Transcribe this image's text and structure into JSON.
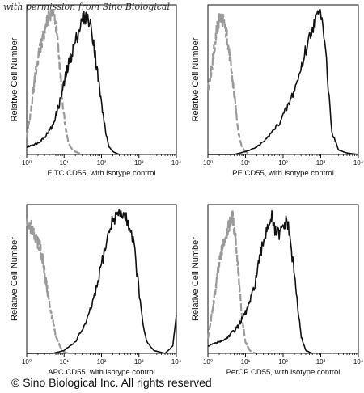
{
  "watermark": "with permission from Sino Biological",
  "copyright": "© Sino Biological Inc. All rights reserved",
  "chart_data": [
    {
      "type": "line",
      "xlabel": "FITC CD55, with isotype control",
      "ylabel": "Relative Cell Number",
      "xscale": "log",
      "xlim": [
        1,
        10000
      ],
      "ylim": [
        0,
        100
      ],
      "x_ticks": [
        "10⁰",
        "10¹",
        "10²",
        "10³",
        "10⁴"
      ],
      "series": [
        {
          "style": "dashed-gray",
          "color": "#9a9a9a",
          "x": [
            1,
            1.3,
            1.7,
            2.2,
            2.8,
            3.5,
            4.2,
            5,
            5.8,
            6.7,
            7.8,
            9,
            11,
            13,
            16,
            20,
            30
          ],
          "y": [
            12,
            30,
            55,
            72,
            82,
            92,
            97,
            100,
            93,
            78,
            60,
            35,
            18,
            8,
            4,
            2,
            0
          ]
        },
        {
          "style": "solid-black",
          "color": "#111111",
          "x": [
            1,
            2,
            3,
            5,
            8,
            12,
            18,
            25,
            32,
            40,
            50,
            60,
            75,
            100,
            130,
            160,
            200,
            300
          ],
          "y": [
            5,
            8,
            12,
            20,
            38,
            58,
            74,
            86,
            94,
            95,
            90,
            80,
            60,
            35,
            15,
            5,
            2,
            0
          ]
        }
      ]
    },
    {
      "type": "line",
      "xlabel": "PE CD55, with isotype control",
      "ylabel": "Relative Cell Number",
      "xscale": "log",
      "xlim": [
        1,
        10000
      ],
      "ylim": [
        0,
        100
      ],
      "x_ticks": [
        "10⁰",
        "10¹",
        "10²",
        "10³",
        "10⁴"
      ],
      "series": [
        {
          "style": "dashed-gray",
          "color": "#9a9a9a",
          "x": [
            1,
            1.3,
            1.7,
            2.1,
            2.6,
            3.2,
            3.8,
            4.5,
            5.5,
            6.5,
            8,
            10,
            13
          ],
          "y": [
            45,
            62,
            85,
            95,
            92,
            82,
            68,
            52,
            32,
            15,
            5,
            2,
            0
          ]
        },
        {
          "style": "solid-black",
          "color": "#111111",
          "x": [
            1,
            5,
            10,
            20,
            40,
            80,
            150,
            250,
            400,
            600,
            800,
            1000,
            1300,
            1600,
            2000,
            3000,
            5000,
            10000
          ],
          "y": [
            0,
            0,
            2,
            5,
            12,
            22,
            36,
            52,
            72,
            88,
            95,
            100,
            80,
            45,
            15,
            3,
            1,
            0
          ]
        }
      ]
    },
    {
      "type": "line",
      "xlabel": "APC CD55, with isotype control",
      "ylabel": "Relative Cell Number",
      "xscale": "log",
      "xlim": [
        1,
        10000
      ],
      "ylim": [
        0,
        100
      ],
      "x_ticks": [
        "10⁰",
        "10¹",
        "10²",
        "10³",
        "10⁴"
      ],
      "series": [
        {
          "style": "dashed-gray",
          "color": "#9a9a9a",
          "x": [
            1,
            1.3,
            1.7,
            2.2,
            2.8,
            3.5,
            4.5,
            6,
            8,
            10,
            13
          ],
          "y": [
            92,
            88,
            80,
            75,
            62,
            45,
            28,
            12,
            4,
            1,
            0
          ]
        },
        {
          "style": "solid-black",
          "color": "#111111",
          "x": [
            1,
            5,
            10,
            20,
            40,
            70,
            100,
            150,
            200,
            300,
            400,
            500,
            700,
            900,
            1200,
            1600,
            2500,
            5000,
            8000,
            10000
          ],
          "y": [
            0,
            0,
            2,
            8,
            22,
            42,
            62,
            82,
            93,
            98,
            96,
            92,
            80,
            55,
            25,
            8,
            2,
            0,
            5,
            25
          ]
        }
      ]
    },
    {
      "type": "line",
      "xlabel": "PerCP CD55, with isotype control",
      "ylabel": "Relative Cell Number",
      "xscale": "log",
      "xlim": [
        1,
        10000
      ],
      "ylim": [
        0,
        100
      ],
      "x_ticks": [
        "10⁰",
        "10¹",
        "10²",
        "10³",
        "10⁴"
      ],
      "series": [
        {
          "style": "dashed-gray",
          "color": "#9a9a9a",
          "x": [
            1,
            1.3,
            1.7,
            2.2,
            2.8,
            3.5,
            4.5,
            5.5,
            6.5,
            8,
            10,
            13,
            18
          ],
          "y": [
            10,
            28,
            50,
            68,
            80,
            88,
            95,
            80,
            55,
            25,
            8,
            2,
            0
          ]
        },
        {
          "style": "solid-black",
          "color": "#111111",
          "x": [
            1,
            3,
            6,
            10,
            15,
            20,
            30,
            40,
            50,
            60,
            80,
            100,
            130,
            160,
            200,
            250,
            300,
            400,
            600
          ],
          "y": [
            5,
            10,
            18,
            28,
            40,
            55,
            78,
            90,
            95,
            85,
            82,
            88,
            92,
            75,
            55,
            30,
            12,
            2,
            0
          ]
        }
      ]
    }
  ]
}
